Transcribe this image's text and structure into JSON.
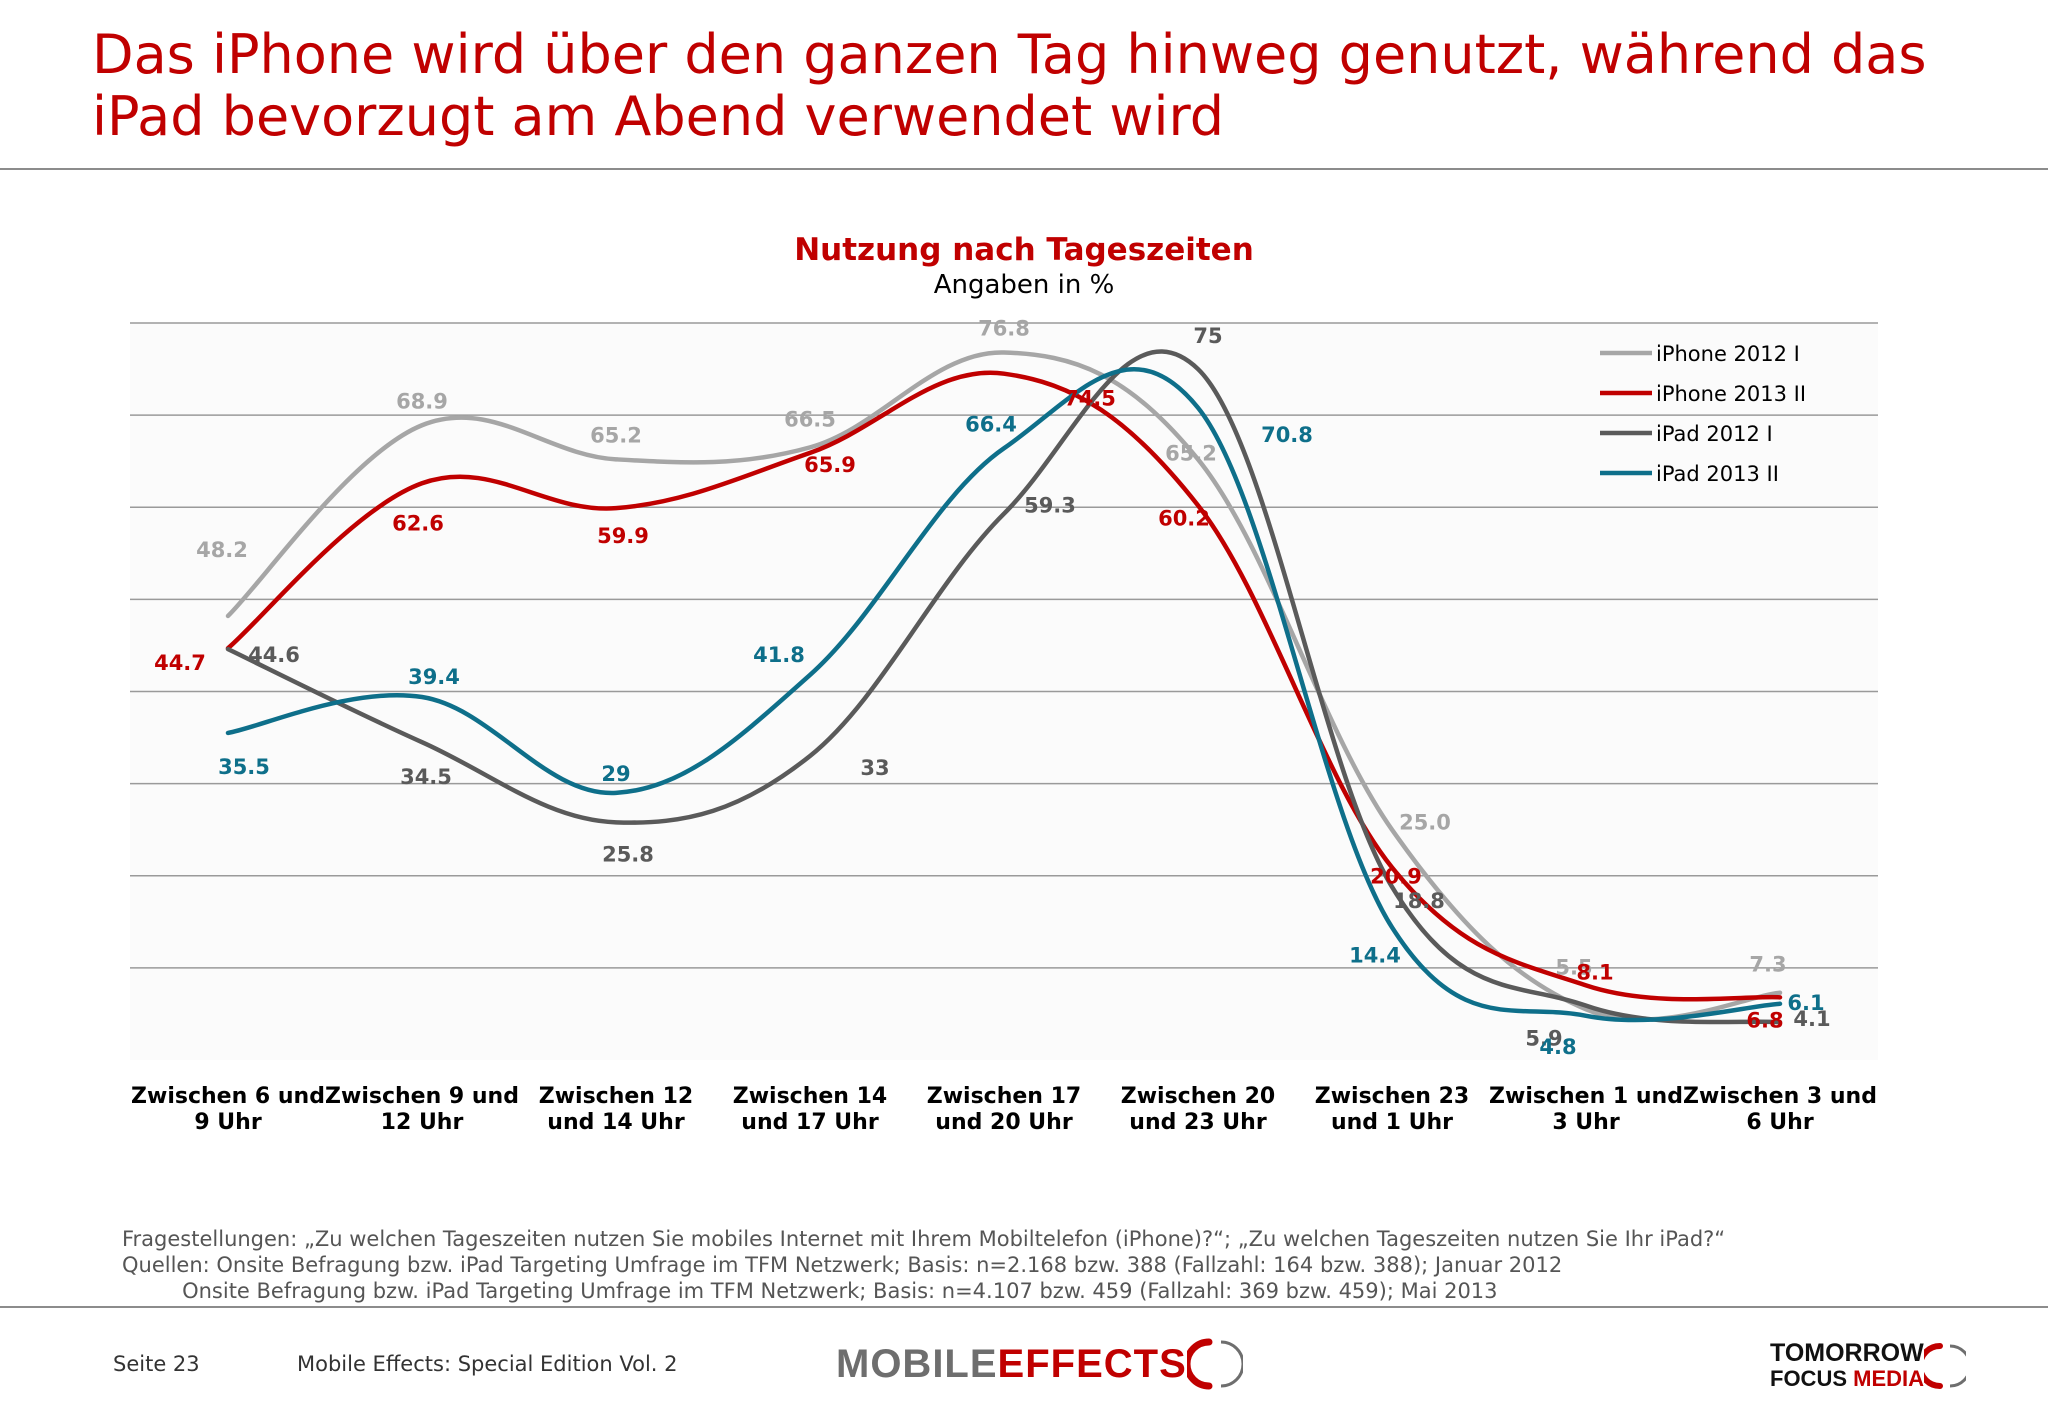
{
  "headline": {
    "line1": "Das iPhone wird über den ganzen Tag hinweg genutzt, während das",
    "line2": "iPad bevorzugt am Abend verwendet wird"
  },
  "chart_data": {
    "type": "line",
    "title": "Nutzung nach Tageszeiten",
    "subtitle": "Angaben in %",
    "categories": [
      [
        "Zwischen 6 und",
        "9 Uhr"
      ],
      [
        "Zwischen 9 und",
        "12 Uhr"
      ],
      [
        "Zwischen 12",
        "und 14 Uhr"
      ],
      [
        "Zwischen 14",
        "und 17 Uhr"
      ],
      [
        "Zwischen 17",
        "und 20 Uhr"
      ],
      [
        "Zwischen 20",
        "und 23 Uhr"
      ],
      [
        "Zwischen 23",
        "und 1 Uhr"
      ],
      [
        "Zwischen 1 und",
        "3 Uhr"
      ],
      [
        "Zwischen 3 und",
        "6 Uhr"
      ]
    ],
    "ylim": [
      0,
      80
    ],
    "grid": true,
    "legend_position": "top-right",
    "series": [
      {
        "name": "iPhone 2012 I",
        "color": "#a6a6a6",
        "values": [
          48.2,
          68.9,
          65.2,
          66.5,
          76.8,
          65.2,
          25.0,
          5.5,
          7.3
        ],
        "labels": [
          "48.2",
          "68.9",
          "65.2",
          "66.5",
          "76.8",
          "65.2",
          "25.0",
          "5.5",
          "7.3"
        ]
      },
      {
        "name": "iPhone 2013 II",
        "color": "#c00000",
        "values": [
          44.7,
          62.6,
          59.9,
          65.9,
          74.5,
          60.2,
          20.9,
          8.1,
          6.8
        ],
        "labels": [
          "44.7",
          "62.6",
          "59.9",
          "65.9",
          "74.5",
          "60.2",
          "20.9",
          "8.1",
          "6.8"
        ]
      },
      {
        "name": "iPad 2012 I",
        "color": "#5a5a5a",
        "values": [
          44.6,
          34.5,
          25.8,
          33,
          59.3,
          75,
          18.8,
          5.9,
          4.1
        ],
        "labels": [
          "44.6",
          "34.5",
          "25.8",
          "33",
          "59.3",
          "75",
          "18.8",
          "5.9",
          "4.1"
        ]
      },
      {
        "name": "iPad 2013 II",
        "color": "#0e6f8a",
        "values": [
          35.5,
          39.4,
          29,
          41.8,
          66.4,
          70.8,
          14.4,
          4.8,
          6.1
        ],
        "labels": [
          "35.5",
          "39.4",
          "29",
          "41.8",
          "66.4",
          "70.8",
          "14.4",
          "4.8",
          "6.1"
        ]
      }
    ]
  },
  "notes": {
    "line1": "Fragestellungen: „Zu welchen Tageszeiten nutzen Sie mobiles Internet mit Ihrem Mobiltelefon (iPhone)?“; „Zu welchen Tageszeiten nutzen Sie Ihr iPad?“",
    "line2": "Quellen: Onsite Befragung bzw. iPad Targeting Umfrage im TFM Netzwerk; Basis: n=2.168 bzw. 388 (Fallzahl: 164 bzw. 388); Januar 2012",
    "line3": "         Onsite Befragung bzw. iPad Targeting Umfrage im TFM Netzwerk; Basis: n=4.107 bzw. 459 (Fallzahl: 369 bzw. 459); Mai 2013"
  },
  "footer": {
    "page": "Seite 23",
    "publication": "Mobile Effects: Special Edition Vol. 2",
    "logo_mobile_word1": "MOBILE",
    "logo_mobile_word2": "EFFECTS",
    "logo_tfm_line1": "TOMORROW",
    "logo_tfm_focus": "FOCUS",
    "logo_tfm_media": "MEDIA"
  }
}
